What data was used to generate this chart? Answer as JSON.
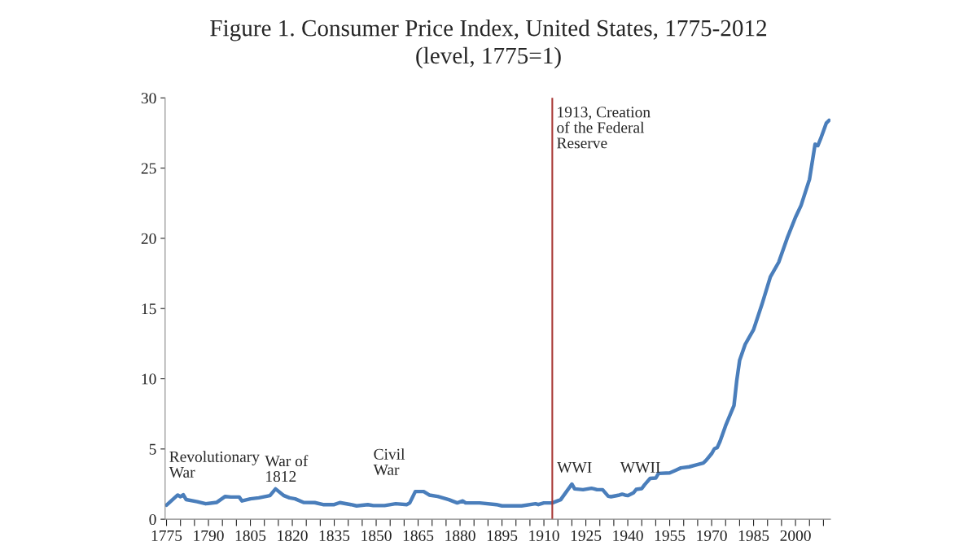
{
  "chart_data": {
    "type": "line",
    "title": "Figure 1. Consumer Price Index, United States, 1775-2012",
    "subtitle": "(level, 1775=1)",
    "x": [
      1775,
      1779,
      1780,
      1781,
      1782,
      1786,
      1789,
      1793,
      1796,
      1798,
      1801,
      1802,
      1805,
      1808,
      1812,
      1814,
      1817,
      1819,
      1821,
      1824,
      1828,
      1831,
      1835,
      1837,
      1841,
      1843,
      1847,
      1849,
      1853,
      1857,
      1861,
      1862,
      1864,
      1867,
      1869,
      1872,
      1876,
      1879,
      1881,
      1882,
      1887,
      1893,
      1895,
      1902,
      1907,
      1908,
      1910,
      1913,
      1916,
      1920,
      1921,
      1924,
      1927,
      1928,
      1929,
      1931,
      1933,
      1934,
      1937,
      1938,
      1939,
      1940,
      1942,
      1943,
      1945,
      1946,
      1948,
      1950,
      1951,
      1955,
      1957,
      1959,
      1962,
      1964,
      1967,
      1968,
      1970,
      1971,
      1972,
      1973,
      1975,
      1978,
      1979,
      1980,
      1982,
      1985,
      1988,
      1991,
      1994,
      1997,
      2000,
      2002,
      2005,
      2007,
      2008,
      2009,
      2011,
      2012
    ],
    "series": [
      {
        "color": "#4a7ebb",
        "values": [
          1.0,
          1.72,
          1.6,
          1.74,
          1.4,
          1.25,
          1.1,
          1.2,
          1.62,
          1.58,
          1.58,
          1.3,
          1.45,
          1.52,
          1.68,
          2.16,
          1.68,
          1.52,
          1.45,
          1.2,
          1.18,
          1.04,
          1.04,
          1.18,
          1.04,
          0.95,
          1.04,
          0.97,
          0.97,
          1.1,
          1.04,
          1.16,
          1.97,
          1.97,
          1.72,
          1.62,
          1.39,
          1.16,
          1.3,
          1.16,
          1.16,
          1.04,
          0.95,
          0.95,
          1.1,
          1.04,
          1.16,
          1.16,
          1.39,
          2.5,
          2.16,
          2.1,
          2.2,
          2.16,
          2.1,
          2.1,
          1.64,
          1.6,
          1.72,
          1.78,
          1.72,
          1.68,
          1.87,
          2.12,
          2.18,
          2.45,
          2.9,
          2.93,
          3.26,
          3.3,
          3.47,
          3.65,
          3.73,
          3.84,
          4.0,
          4.19,
          4.67,
          5.02,
          5.1,
          5.54,
          6.66,
          8.1,
          9.9,
          11.3,
          12.45,
          13.5,
          15.3,
          17.25,
          18.3,
          20.0,
          21.5,
          22.35,
          24.2,
          26.7,
          26.6,
          27.1,
          28.2,
          28.4
        ]
      }
    ],
    "xlim": [
      1774.5,
      2012.5
    ],
    "xticks": [
      1775,
      {
        "value": 1780,
        "label": null
      },
      {
        "value": 1785,
        "label": null
      },
      1790,
      {
        "value": 1795,
        "label": null
      },
      {
        "value": 1800,
        "label": null
      },
      1805,
      {
        "value": 1810,
        "label": null
      },
      {
        "value": 1815,
        "label": null
      },
      1820,
      {
        "value": 1825,
        "label": null
      },
      {
        "value": 1830,
        "label": null
      },
      1835,
      {
        "value": 1840,
        "label": null
      },
      {
        "value": 1845,
        "label": null
      },
      1850,
      {
        "value": 1855,
        "label": null
      },
      {
        "value": 1860,
        "label": null
      },
      1865,
      {
        "value": 1870,
        "label": null
      },
      {
        "value": 1875,
        "label": null
      },
      1880,
      {
        "value": 1885,
        "label": null
      },
      {
        "value": 1890,
        "label": null
      },
      1895,
      {
        "value": 1900,
        "label": null
      },
      {
        "value": 1905,
        "label": null
      },
      1910,
      {
        "value": 1915,
        "label": null
      },
      {
        "value": 1920,
        "label": null
      },
      1925,
      {
        "value": 1930,
        "label": null
      },
      {
        "value": 1935,
        "label": null
      },
      1940,
      {
        "value": 1945,
        "label": null
      },
      {
        "value": 1950,
        "label": null
      },
      1955,
      {
        "value": 1960,
        "label": null
      },
      {
        "value": 1965,
        "label": null
      },
      1970,
      {
        "value": 1975,
        "label": null
      },
      {
        "value": 1980,
        "label": null
      },
      1985,
      {
        "value": 1990,
        "label": null
      },
      {
        "value": 1995,
        "label": null
      },
      2000,
      {
        "value": 2005,
        "label": null
      },
      {
        "value": 2010,
        "label": null
      }
    ],
    "ylim": [
      0,
      30
    ],
    "yticks": [
      0,
      5,
      10,
      15,
      20,
      25,
      30
    ],
    "grid": false,
    "legend": false,
    "marker": "none",
    "line_style": "solid",
    "ref_lines": [
      {
        "axis": "x",
        "value": 1913,
        "label": "1913, Creation of the Federal Reserve",
        "color": "#a93a37"
      }
    ],
    "annotations": [
      "Revolutionary War",
      "War of 1812",
      "Civil War",
      "WWI",
      "WWII"
    ]
  }
}
